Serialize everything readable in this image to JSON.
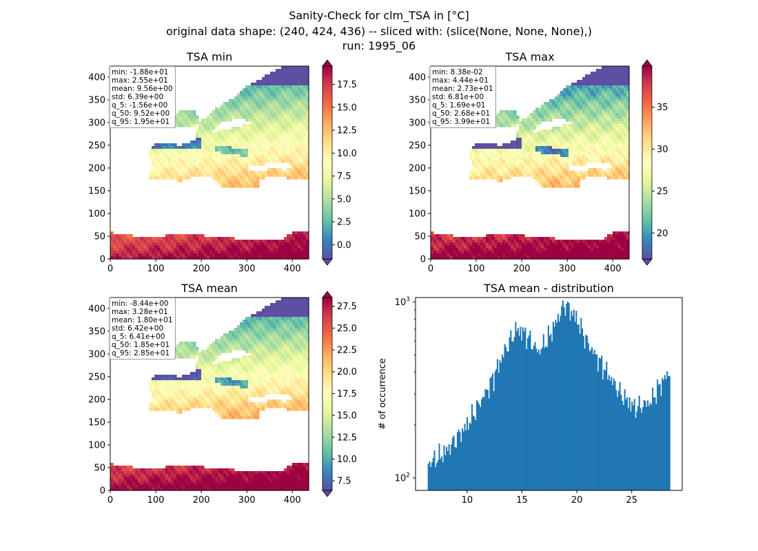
{
  "title": {
    "line1": "Sanity-Check for clm_TSA in [°C]",
    "line2": "original data shape: (240, 424, 436) -- sliced with: (slice(None, None, None),)",
    "line3": "run: 1995_06"
  },
  "colors": {
    "spectral_r": [
      "#5e4fa2",
      "#3288bd",
      "#66c2a5",
      "#abdda4",
      "#e6f598",
      "#ffffbf",
      "#fee08b",
      "#fdae61",
      "#f46d43",
      "#d53e4f",
      "#9e0142"
    ],
    "hist_bar": "#1f77b4",
    "stat_border": "#9a9a9a"
  },
  "panels": [
    {
      "title": "TSA min",
      "x_ticks": [
        "0",
        "100",
        "200",
        "300",
        "400"
      ],
      "y_ticks": [
        "0",
        "50",
        "100",
        "150",
        "200",
        "250",
        "300",
        "350",
        "400"
      ],
      "colorbar_ticks": [
        "0.0",
        "2.5",
        "5.0",
        "7.5",
        "10.0",
        "12.5",
        "15.0",
        "17.5"
      ],
      "colorbar_values": [
        0.0,
        2.5,
        5.0,
        7.5,
        10.0,
        12.5,
        15.0,
        17.5
      ],
      "colorbar_range": [
        -1.56,
        19.5
      ],
      "colorbar_extend": "both",
      "stats": [
        "min: -1.88e+01",
        "max: 2.55e+01",
        "mean: 9.56e+00",
        "std: 6.39e+00",
        "q_5: -1.56e+00",
        "q_50: 9.52e+00",
        "q_95: 1.95e+01"
      ]
    },
    {
      "title": "TSA max",
      "x_ticks": [
        "0",
        "100",
        "200",
        "300",
        "400"
      ],
      "y_ticks": [
        "0",
        "50",
        "100",
        "150",
        "200",
        "250",
        "300",
        "350",
        "400"
      ],
      "colorbar_ticks": [
        "20",
        "25",
        "30",
        "35"
      ],
      "colorbar_values": [
        20,
        25,
        30,
        35
      ],
      "colorbar_range": [
        16.9,
        39.9
      ],
      "colorbar_extend": "both",
      "stats": [
        "min: 8.38e-02",
        "max: 4.44e+01",
        "mean: 2.73e+01",
        "std: 6.81e+00",
        "q_5: 1.69e+01",
        "q_50: 2.68e+01",
        "q_95: 3.99e+01"
      ]
    },
    {
      "title": "TSA mean",
      "x_ticks": [
        "0",
        "100",
        "200",
        "300",
        "400"
      ],
      "y_ticks": [
        "0",
        "50",
        "100",
        "150",
        "200",
        "250",
        "300",
        "350",
        "400"
      ],
      "colorbar_ticks": [
        "7.5",
        "10.0",
        "12.5",
        "15.0",
        "17.5",
        "20.0",
        "22.5",
        "25.0",
        "27.5"
      ],
      "colorbar_values": [
        7.5,
        10.0,
        12.5,
        15.0,
        17.5,
        20.0,
        22.5,
        25.0,
        27.5
      ],
      "colorbar_range": [
        6.41,
        28.5
      ],
      "colorbar_extend": "both",
      "stats": [
        "min: -8.44e+00",
        "max: 3.28e+01",
        "mean: 1.80e+01",
        "std: 6.42e+00",
        "q_5: 6.41e+00",
        "q_50: 1.85e+01",
        "q_95: 2.85e+01"
      ]
    }
  ],
  "chart_data": [
    {
      "type": "heatmap",
      "title": "TSA min",
      "xlim": [
        0,
        436
      ],
      "ylim": [
        0,
        424
      ],
      "colormap": "Spectral_r",
      "value_range": [
        -1.56,
        19.5
      ],
      "colorbar_ticks": [
        0.0,
        2.5,
        5.0,
        7.5,
        10.0,
        12.5,
        15.0,
        17.5
      ]
    },
    {
      "type": "heatmap",
      "title": "TSA max",
      "xlim": [
        0,
        436
      ],
      "ylim": [
        0,
        424
      ],
      "colormap": "Spectral_r",
      "value_range": [
        16.9,
        39.9
      ],
      "colorbar_ticks": [
        20,
        25,
        30,
        35
      ]
    },
    {
      "type": "heatmap",
      "title": "TSA mean",
      "xlim": [
        0,
        436
      ],
      "ylim": [
        0,
        424
      ],
      "colormap": "Spectral_r",
      "value_range": [
        6.41,
        28.5
      ],
      "colorbar_ticks": [
        7.5,
        10.0,
        12.5,
        15.0,
        17.5,
        20.0,
        22.5,
        25.0,
        27.5
      ]
    },
    {
      "type": "bar",
      "title": "TSA mean - distribution",
      "xlabel": "",
      "ylabel": "# of occurrence",
      "yscale": "log",
      "xlim": [
        5.3,
        29.6
      ],
      "ylim": [
        85,
        1060
      ],
      "x_ticks": [
        10,
        15,
        20,
        25
      ],
      "x_tick_labels": [
        "10",
        "15",
        "20",
        "25"
      ],
      "y_ticks": [
        100,
        1000
      ],
      "bins": {
        "start": 6.41,
        "end": 28.5,
        "count": 200
      },
      "peaks": [
        {
          "x": 6.41,
          "y": 120
        },
        {
          "x": 8.0,
          "y": 140
        },
        {
          "x": 10.0,
          "y": 200
        },
        {
          "x": 12.0,
          "y": 330
        },
        {
          "x": 13.5,
          "y": 540
        },
        {
          "x": 14.5,
          "y": 700
        },
        {
          "x": 15.3,
          "y": 660
        },
        {
          "x": 16.5,
          "y": 520
        },
        {
          "x": 17.5,
          "y": 640
        },
        {
          "x": 18.9,
          "y": 980
        },
        {
          "x": 20.0,
          "y": 800
        },
        {
          "x": 21.0,
          "y": 580
        },
        {
          "x": 22.5,
          "y": 420
        },
        {
          "x": 24.0,
          "y": 300
        },
        {
          "x": 25.3,
          "y": 250
        },
        {
          "x": 26.7,
          "y": 270
        },
        {
          "x": 27.5,
          "y": 330
        },
        {
          "x": 28.5,
          "y": 410
        }
      ]
    }
  ]
}
